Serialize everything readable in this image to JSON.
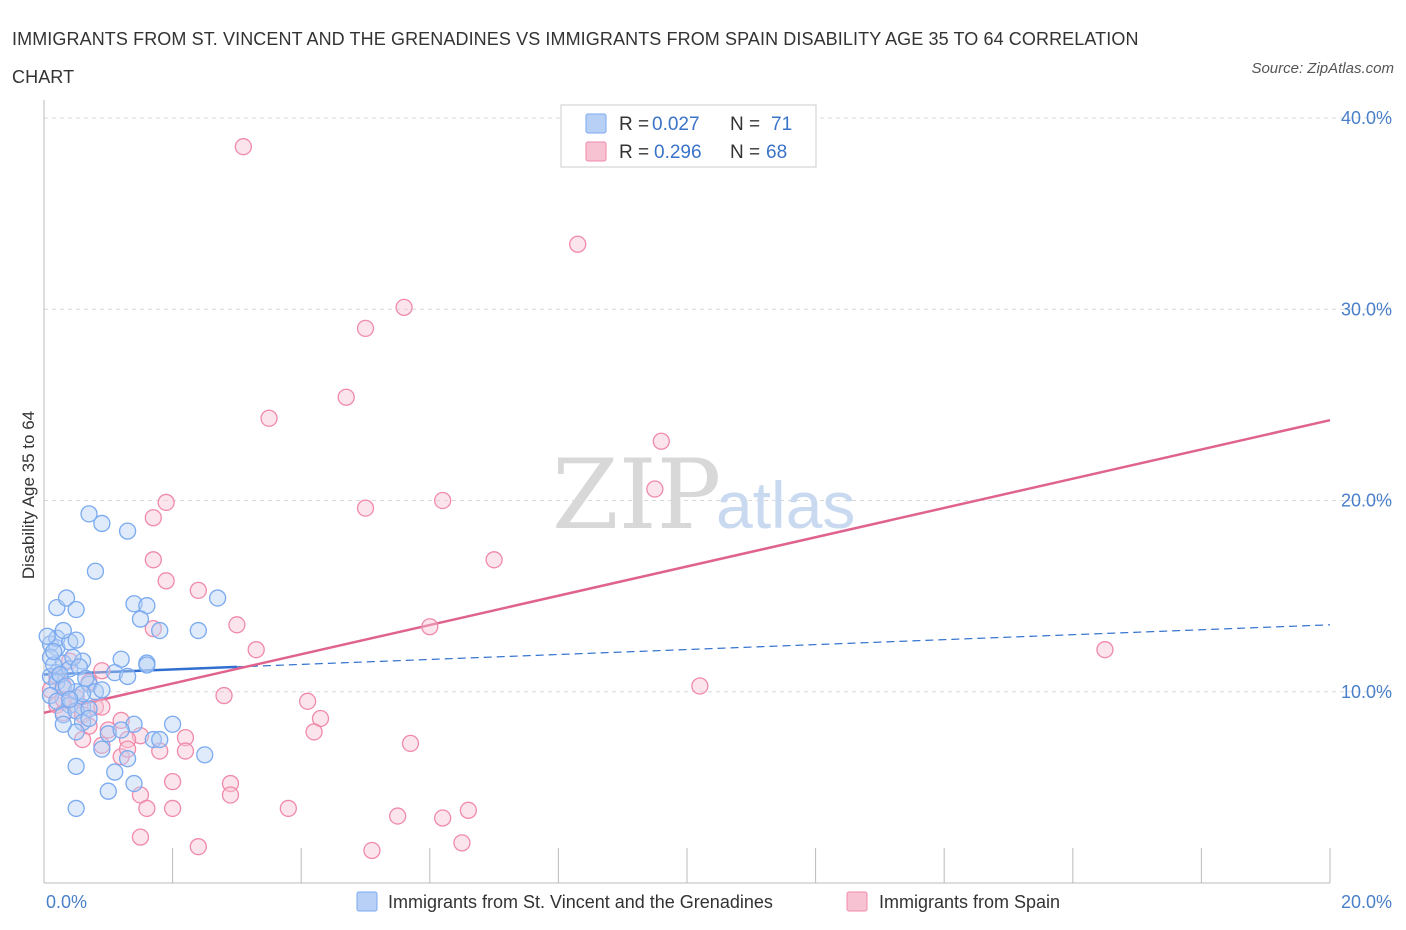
{
  "title": "IMMIGRANTS FROM ST. VINCENT AND THE GRENADINES VS IMMIGRANTS FROM SPAIN DISABILITY AGE 35 TO 64 CORRELATION CHART",
  "source": "Source: ZipAtlas.com",
  "watermark": {
    "zip": "ZIP",
    "atlas": "atlas"
  },
  "legend": {
    "r_label": "R =",
    "n_label": "N =",
    "rows": [
      {
        "r": "0.027",
        "n": "71"
      },
      {
        "r": "0.296",
        "n": "68"
      }
    ]
  },
  "bottom_legend": [
    "Immigrants from St. Vincent and the Grenadines",
    "Immigrants from Spain"
  ],
  "colors": {
    "blue": "#7aaaf0",
    "blue_fill": "#b8d0f5",
    "blue_line": "#2f6fd0",
    "pink": "#f08aaa",
    "pink_fill": "#f7c3d3",
    "pink_line": "#e0628f",
    "tick_text": "#4a7fc9",
    "grid": "#d8d8d8"
  },
  "chart_data": {
    "type": "scatter",
    "title": "IMMIGRANTS FROM ST. VINCENT AND THE GRENADINES VS IMMIGRANTS FROM SPAIN DISABILITY AGE 35 TO 64 CORRELATION CHART",
    "xlabel": "",
    "ylabel": "Disability Age 35 to 64",
    "xlim": [
      0,
      20
    ],
    "ylim": [
      0,
      40
    ],
    "x_tick_labels": [
      "0.0%",
      "20.0%"
    ],
    "y_ticks": [
      10,
      20,
      30,
      40
    ],
    "y_tick_labels": [
      "10.0%",
      "20.0%",
      "30.0%",
      "40.0%"
    ],
    "grid": true,
    "legend_position": "top-center",
    "series": [
      {
        "name": "Immigrants from St. Vincent and the Grenadines",
        "color": "#7aaaf0",
        "R": 0.027,
        "N": 71,
        "trend": {
          "x": [
            0,
            3.0
          ],
          "y": [
            10.9,
            11.3
          ],
          "dashed_to": [
            20,
            13.5
          ]
        },
        "points": [
          [
            0.1,
            12.5
          ],
          [
            0.2,
            12.3
          ],
          [
            0.1,
            11.8
          ],
          [
            0.3,
            11.5
          ],
          [
            0.2,
            11.0
          ],
          [
            0.1,
            10.8
          ],
          [
            0.4,
            11.2
          ],
          [
            0.2,
            10.5
          ],
          [
            0.3,
            10.2
          ],
          [
            0.5,
            10.0
          ],
          [
            0.1,
            9.8
          ],
          [
            0.2,
            9.5
          ],
          [
            0.4,
            9.3
          ],
          [
            0.6,
            9.2
          ],
          [
            0.3,
            8.8
          ],
          [
            0.5,
            9.0
          ],
          [
            0.2,
            12.8
          ],
          [
            0.4,
            12.6
          ],
          [
            0.3,
            13.2
          ],
          [
            0.5,
            12.7
          ],
          [
            0.2,
            14.4
          ],
          [
            0.35,
            14.9
          ],
          [
            0.5,
            14.3
          ],
          [
            0.6,
            11.6
          ],
          [
            0.7,
            10.4
          ],
          [
            0.8,
            10.0
          ],
          [
            0.7,
            9.1
          ],
          [
            0.6,
            8.4
          ],
          [
            0.5,
            7.9
          ],
          [
            0.3,
            8.3
          ],
          [
            0.8,
            16.3
          ],
          [
            0.9,
            18.8
          ],
          [
            1.3,
            18.4
          ],
          [
            0.7,
            19.3
          ],
          [
            1.4,
            14.6
          ],
          [
            1.6,
            14.5
          ],
          [
            1.5,
            13.8
          ],
          [
            1.2,
            11.7
          ],
          [
            1.1,
            11.0
          ],
          [
            1.3,
            10.8
          ],
          [
            1.6,
            11.5
          ],
          [
            1.8,
            13.2
          ],
          [
            2.4,
            13.2
          ],
          [
            2.7,
            14.9
          ],
          [
            1.4,
            8.3
          ],
          [
            1.7,
            7.5
          ],
          [
            1.0,
            7.8
          ],
          [
            0.9,
            7.0
          ],
          [
            1.3,
            6.5
          ],
          [
            1.1,
            5.8
          ],
          [
            0.5,
            6.1
          ],
          [
            1.0,
            4.8
          ],
          [
            1.4,
            5.2
          ],
          [
            0.5,
            3.9
          ],
          [
            2.5,
            6.7
          ],
          [
            1.8,
            7.5
          ],
          [
            0.15,
            11.4
          ],
          [
            0.25,
            10.9
          ],
          [
            0.45,
            11.8
          ],
          [
            0.35,
            10.3
          ],
          [
            0.15,
            12.1
          ],
          [
            0.55,
            11.3
          ],
          [
            0.65,
            10.7
          ],
          [
            0.05,
            12.9
          ],
          [
            0.6,
            9.9
          ],
          [
            0.9,
            10.1
          ],
          [
            1.2,
            8.0
          ],
          [
            0.4,
            9.6
          ],
          [
            0.7,
            8.6
          ],
          [
            1.6,
            11.4
          ],
          [
            2.0,
            8.3
          ]
        ]
      },
      {
        "name": "Immigrants from Spain",
        "color": "#f08aaa",
        "R": 0.296,
        "N": 68,
        "trend": {
          "x": [
            0,
            20
          ],
          "y": [
            8.9,
            24.2
          ]
        },
        "points": [
          [
            3.1,
            38.5
          ],
          [
            8.3,
            33.4
          ],
          [
            5.6,
            30.1
          ],
          [
            5.0,
            29.0
          ],
          [
            4.7,
            25.4
          ],
          [
            3.5,
            24.3
          ],
          [
            9.6,
            23.1
          ],
          [
            9.5,
            20.6
          ],
          [
            6.2,
            20.0
          ],
          [
            5.0,
            19.6
          ],
          [
            1.9,
            19.9
          ],
          [
            1.7,
            19.1
          ],
          [
            7.0,
            16.9
          ],
          [
            1.7,
            16.9
          ],
          [
            1.9,
            15.8
          ],
          [
            2.4,
            15.3
          ],
          [
            3.0,
            13.5
          ],
          [
            1.7,
            13.3
          ],
          [
            6.0,
            13.4
          ],
          [
            3.3,
            12.2
          ],
          [
            16.5,
            12.2
          ],
          [
            10.2,
            10.3
          ],
          [
            2.8,
            9.8
          ],
          [
            4.1,
            9.5
          ],
          [
            4.3,
            8.6
          ],
          [
            4.2,
            7.9
          ],
          [
            5.7,
            7.3
          ],
          [
            2.2,
            7.6
          ],
          [
            2.2,
            6.9
          ],
          [
            1.5,
            7.7
          ],
          [
            1.8,
            6.9
          ],
          [
            1.3,
            7.5
          ],
          [
            1.2,
            6.6
          ],
          [
            0.9,
            7.2
          ],
          [
            1.5,
            4.6
          ],
          [
            1.6,
            3.9
          ],
          [
            2.0,
            3.9
          ],
          [
            2.0,
            5.3
          ],
          [
            2.9,
            5.2
          ],
          [
            2.9,
            4.6
          ],
          [
            3.8,
            3.9
          ],
          [
            6.2,
            3.4
          ],
          [
            5.5,
            3.5
          ],
          [
            6.6,
            3.8
          ],
          [
            6.5,
            2.1
          ],
          [
            2.4,
            1.9
          ],
          [
            1.5,
            2.4
          ],
          [
            5.1,
            1.7
          ],
          [
            0.5,
            9.0
          ],
          [
            0.8,
            9.2
          ],
          [
            0.6,
            8.8
          ],
          [
            0.4,
            9.6
          ],
          [
            0.3,
            10.3
          ],
          [
            0.7,
            10.5
          ],
          [
            0.9,
            11.1
          ],
          [
            0.2,
            9.3
          ],
          [
            0.5,
            9.7
          ],
          [
            0.3,
            8.9
          ],
          [
            1.0,
            8.0
          ],
          [
            1.3,
            7.0
          ],
          [
            0.6,
            7.5
          ],
          [
            1.2,
            8.5
          ],
          [
            0.2,
            10.8
          ],
          [
            0.4,
            11.6
          ],
          [
            0.9,
            9.2
          ],
          [
            0.7,
            8.2
          ],
          [
            0.1,
            10.1
          ],
          [
            0.3,
            9.6
          ]
        ]
      }
    ]
  }
}
